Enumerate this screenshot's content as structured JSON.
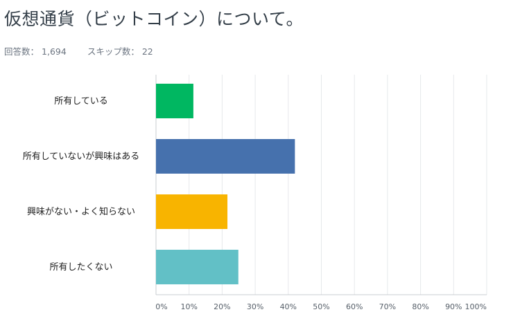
{
  "title": "仮想通貨（ビットコイン）について。",
  "stats": {
    "answered_label": "回答数：",
    "answered_value": "1,694",
    "skipped_label": "スキップ数：",
    "skipped_value": "22"
  },
  "chart_data": {
    "type": "bar",
    "orientation": "horizontal",
    "categories": [
      "所有している",
      "所有していないが興味はある",
      "興味がない・よく知らない",
      "所有したくない"
    ],
    "values": [
      11.3,
      42.0,
      21.6,
      24.9
    ],
    "colors": [
      "#00b761",
      "#4671ad",
      "#f8b400",
      "#62c0c6"
    ],
    "xlim": [
      0,
      100
    ],
    "xticks": [
      0,
      10,
      20,
      30,
      40,
      50,
      60,
      70,
      80,
      90,
      100
    ],
    "xtick_labels": [
      "0%",
      "10%",
      "20%",
      "30%",
      "40%",
      "50%",
      "60%",
      "70%",
      "80%",
      "90%",
      "100%"
    ],
    "grid": true,
    "title": "",
    "xlabel": "",
    "ylabel": ""
  }
}
